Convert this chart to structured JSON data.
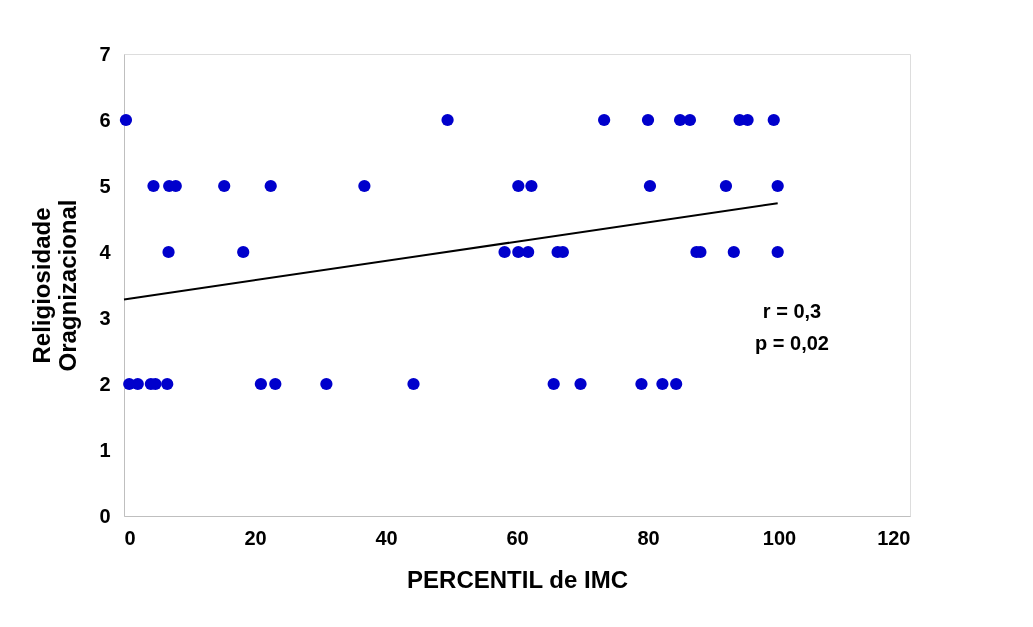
{
  "chart_data": {
    "type": "scatter",
    "xlabel": "PERCENTIL de IMC",
    "ylabel": "Religiosidade Oragnizacional",
    "xlim": [
      0,
      120
    ],
    "xticks": [
      0,
      20,
      40,
      60,
      80,
      100,
      120
    ],
    "ylim": [
      0,
      7
    ],
    "yticks": [
      0,
      1,
      2,
      3,
      4,
      5,
      6,
      7
    ],
    "grid": false,
    "series": [
      {
        "marker": "circle",
        "color": "#0000cc",
        "x": [
          0.3,
          49.4,
          73.3,
          80.0,
          84.9,
          86.4,
          94.0,
          95.2,
          99.2,
          4.5,
          6.9,
          7.9,
          15.3,
          22.4,
          36.7,
          60.2,
          62.2,
          80.3,
          91.9,
          99.8,
          6.8,
          18.2,
          58.1,
          60.2,
          61.7,
          66.2,
          67.0,
          87.4,
          88.0,
          93.1,
          99.8,
          0.8,
          2.1,
          4.1,
          4.8,
          6.6,
          20.9,
          23.1,
          30.9,
          44.2,
          65.6,
          69.7,
          79.0,
          82.2,
          84.3
        ],
        "values": [
          6,
          6,
          6,
          6,
          6,
          6,
          6,
          6,
          6,
          5,
          5,
          5,
          5,
          5,
          5,
          5,
          5,
          5,
          5,
          5,
          4,
          4,
          4,
          4,
          4,
          4,
          4,
          4,
          4,
          4,
          4,
          2,
          2,
          2,
          2,
          2,
          2,
          2,
          2,
          2,
          2,
          2,
          2,
          2,
          2
        ]
      },
      {
        "type": "line",
        "color": "#000000",
        "x": [
          0,
          99.8
        ],
        "values": [
          3.28,
          4.74
        ],
        "line_style": "solid",
        "marker": "none"
      }
    ],
    "annotations": [
      "r = 0,3",
      "p = 0,02"
    ]
  }
}
